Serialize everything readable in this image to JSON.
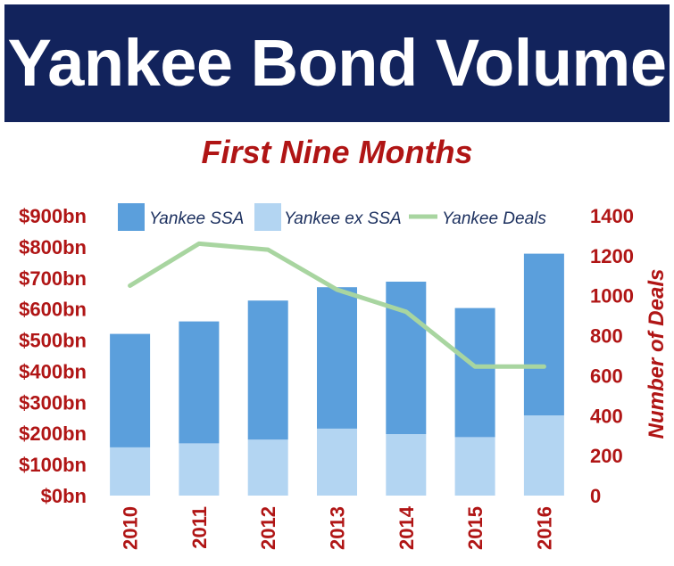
{
  "banner": {
    "title": "Yankee Bond Volume"
  },
  "chart_data": {
    "type": "bar",
    "title": "Yankee Bond Volume",
    "subtitle": "First Nine Months",
    "categories": [
      "2010",
      "2011",
      "2012",
      "2013",
      "2014",
      "2015",
      "2016"
    ],
    "stacked": true,
    "series": [
      {
        "name": "Yankee ex SSA",
        "axis": "left",
        "values": [
          155,
          168,
          180,
          215,
          198,
          188,
          258
        ],
        "color": "#b3d5f2"
      },
      {
        "name": "Yankee SSA",
        "axis": "left",
        "values": [
          365,
          392,
          447,
          455,
          490,
          415,
          520
        ],
        "color": "#5b9fdc"
      },
      {
        "name": "Yankee Deals",
        "axis": "right",
        "type": "line",
        "values": [
          1050,
          1260,
          1230,
          1030,
          920,
          645,
          645
        ],
        "color": "#a8d5a0"
      }
    ],
    "legend_order": [
      "Yankee SSA",
      "Yankee ex SSA",
      "Yankee Deals"
    ],
    "left_axis": {
      "ylim": [
        0,
        900
      ],
      "ticks": [
        0,
        100,
        200,
        300,
        400,
        500,
        600,
        700,
        800,
        900
      ],
      "tick_labels": [
        "$0bn",
        "$100bn",
        "$200bn",
        "$300bn",
        "$400bn",
        "$500bn",
        "$600bn",
        "$700bn",
        "$800bn",
        "$900bn"
      ]
    },
    "right_axis": {
      "label": "Number of Deals",
      "ylim": [
        0,
        1400
      ],
      "ticks": [
        0,
        200,
        400,
        600,
        800,
        1000,
        1200,
        1400
      ],
      "tick_labels": [
        "0",
        "200",
        "400",
        "600",
        "800",
        "1000",
        "1200",
        "1400"
      ]
    },
    "legend_position": "top",
    "grid": false
  }
}
